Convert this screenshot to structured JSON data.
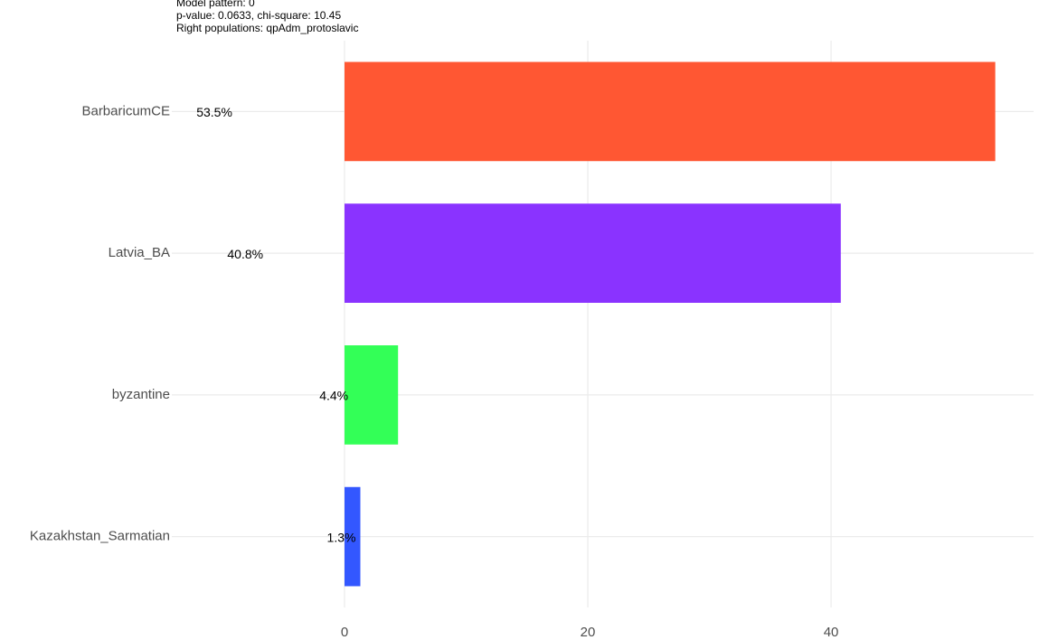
{
  "chart_data": {
    "type": "bar",
    "orientation": "horizontal",
    "title_lines": [
      "Model pattern: 0",
      "p-value: 0.0633, chi-square: 10.45",
      "Right populations: qpAdm_protoslavic"
    ],
    "categories": [
      "BarbaricumCE",
      "Latvia_BA",
      "byzantine",
      "Kazakhstan_Sarmatian"
    ],
    "values": [
      53.5,
      40.8,
      4.4,
      1.3
    ],
    "value_labels": [
      "53.5%",
      "40.8%",
      "4.4%",
      "1.3%"
    ],
    "colors": [
      "#FF5733",
      "#8A33FF",
      "#33FF57",
      "#3357FF"
    ],
    "xlim": [
      -14.2,
      56.65
    ],
    "xticks": [
      0,
      20,
      40
    ],
    "grid": true
  }
}
